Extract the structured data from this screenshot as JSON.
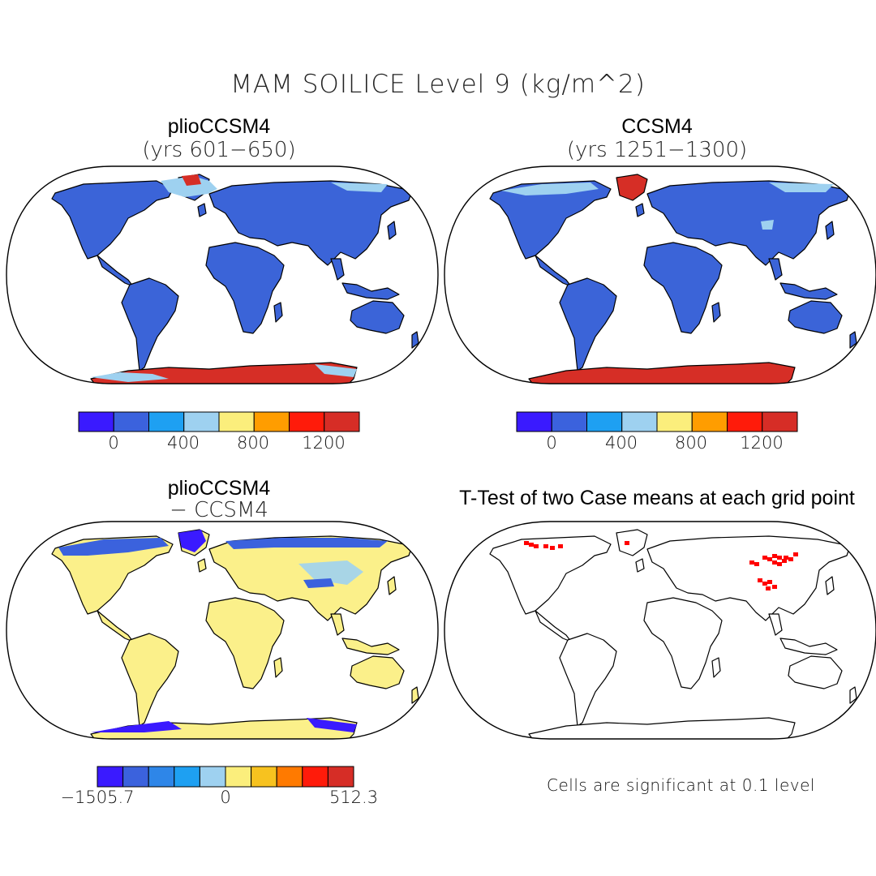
{
  "title": "MAM SOILICE Level 9 (kg/m^2)",
  "panels": [
    {
      "id": "plio",
      "title": "plioCCSM4",
      "subtitle": "(yrs 601−650)",
      "land_color": "#3b64d8",
      "polar_color": "#d62e26",
      "colorbar": {
        "colors": [
          "#3a1aff",
          "#3b62dd",
          "#1ea0f2",
          "#9ed1f0",
          "#fbee7c",
          "#ff9d00",
          "#ff1b0a",
          "#d62d26"
        ],
        "labels": [
          "0",
          "400",
          "800",
          "1200"
        ]
      }
    },
    {
      "id": "ccsm4",
      "title": "CCSM4",
      "subtitle": "(yrs 1251−1300)",
      "land_color": "#3b64d8",
      "polar_color": "#d62e26",
      "colorbar": {
        "colors": [
          "#3a1aff",
          "#3b62dd",
          "#1ea0f2",
          "#9ed1f0",
          "#fbee7c",
          "#ff9d00",
          "#ff1b0a",
          "#d62d26"
        ],
        "labels": [
          "0",
          "400",
          "800",
          "1200"
        ]
      }
    },
    {
      "id": "diff",
      "title": "plioCCSM4",
      "subtitle": "− CCSM4",
      "land_color": "#fbf08a",
      "polar_color": "#3a1aff",
      "colorbar": {
        "colors": [
          "#3a1aff",
          "#3b62dd",
          "#2e86e8",
          "#1ea0f2",
          "#9ed1f0",
          "#fbee7c",
          "#f7c21f",
          "#ff7a00",
          "#ff1b0a",
          "#d62d26"
        ],
        "labels": [
          "−1505.7",
          "0",
          "512.3"
        ]
      }
    },
    {
      "id": "ttest",
      "title": "T-Test of two Case means at each grid point",
      "note": "Cells are significant at 0.1 level",
      "significant_color": "#ff0000"
    }
  ]
}
